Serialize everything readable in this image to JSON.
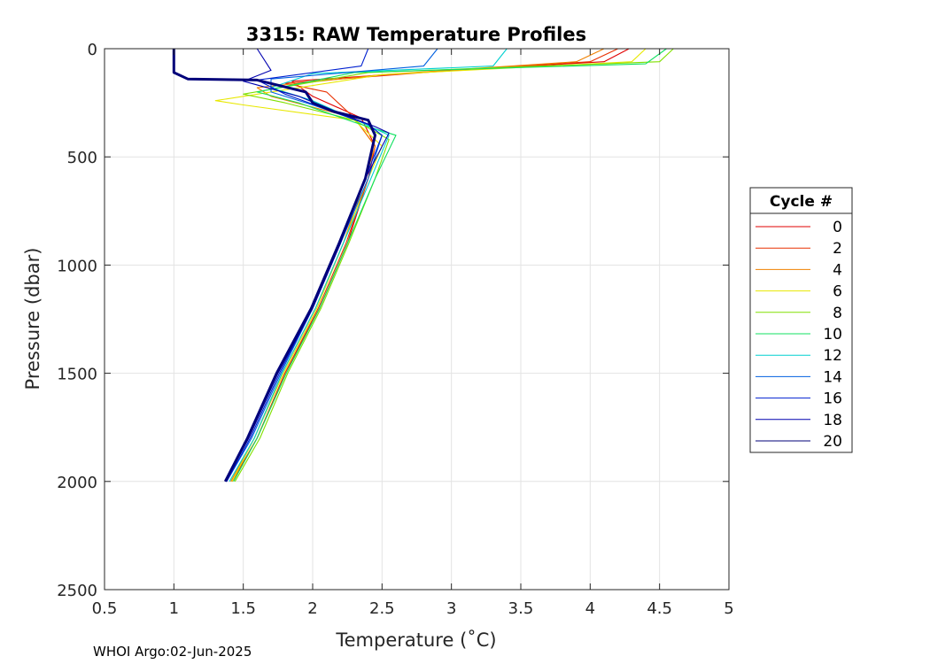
{
  "chart_data": {
    "type": "line",
    "title": "3315: RAW Temperature Profiles",
    "xlabel": "Temperature (˚C)",
    "ylabel": "Pressure (dbar)",
    "xlim": [
      0.5,
      5
    ],
    "ylim": [
      0,
      2500
    ],
    "y_reversed": true,
    "x_ticks": [
      "0.5",
      "1",
      "1.5",
      "2",
      "2.5",
      "3",
      "3.5",
      "4",
      "4.5",
      "5"
    ],
    "y_ticks": [
      "0",
      "500",
      "1000",
      "1500",
      "2000",
      "2500"
    ],
    "grid": true,
    "legend": {
      "title": "Cycle #",
      "position": "right"
    },
    "series": [
      {
        "name": "0",
        "color": "#e00000",
        "surface_temp": 4.28,
        "profile": [
          [
            4.28,
            0
          ],
          [
            4.1,
            60
          ],
          [
            3.0,
            100
          ],
          [
            1.85,
            150
          ],
          [
            2.0,
            220
          ],
          [
            2.35,
            320
          ],
          [
            2.45,
            450
          ],
          [
            2.4,
            600
          ],
          [
            2.25,
            900
          ],
          [
            2.05,
            1200
          ],
          [
            1.8,
            1500
          ],
          [
            1.6,
            1800
          ],
          [
            1.42,
            2000
          ]
        ]
      },
      {
        "name": "2",
        "color": "#e83000",
        "surface_temp": 4.2,
        "profile": [
          [
            4.2,
            0
          ],
          [
            4.0,
            60
          ],
          [
            2.8,
            110
          ],
          [
            1.8,
            160
          ],
          [
            2.1,
            200
          ],
          [
            2.3,
            320
          ],
          [
            2.45,
            450
          ],
          [
            2.4,
            600
          ],
          [
            2.24,
            900
          ],
          [
            2.04,
            1200
          ],
          [
            1.8,
            1500
          ],
          [
            1.6,
            1800
          ],
          [
            1.42,
            2000
          ]
        ]
      },
      {
        "name": "4",
        "color": "#f08000",
        "surface_temp": 4.1,
        "profile": [
          [
            4.1,
            0
          ],
          [
            3.9,
            60
          ],
          [
            2.5,
            120
          ],
          [
            1.6,
            180
          ],
          [
            1.7,
            220
          ],
          [
            2.3,
            320
          ],
          [
            2.45,
            450
          ],
          [
            2.38,
            600
          ],
          [
            2.22,
            900
          ],
          [
            2.02,
            1200
          ],
          [
            1.78,
            1500
          ],
          [
            1.58,
            1800
          ],
          [
            1.41,
            2000
          ]
        ]
      },
      {
        "name": "6",
        "color": "#e8e800",
        "surface_temp": 4.4,
        "profile": [
          [
            4.4,
            0
          ],
          [
            4.3,
            60
          ],
          [
            2.5,
            120
          ],
          [
            1.3,
            240
          ],
          [
            1.5,
            260
          ],
          [
            2.3,
            330
          ],
          [
            2.5,
            450
          ],
          [
            2.4,
            600
          ],
          [
            2.22,
            900
          ],
          [
            2.03,
            1200
          ],
          [
            1.79,
            1500
          ],
          [
            1.58,
            1800
          ],
          [
            1.42,
            2000
          ]
        ]
      },
      {
        "name": "8",
        "color": "#80e000",
        "surface_temp": 4.6,
        "profile": [
          [
            4.6,
            0
          ],
          [
            4.5,
            60
          ],
          [
            2.4,
            110
          ],
          [
            1.5,
            210
          ],
          [
            1.8,
            250
          ],
          [
            2.3,
            330
          ],
          [
            2.55,
            420
          ],
          [
            2.45,
            600
          ],
          [
            2.26,
            900
          ],
          [
            2.06,
            1200
          ],
          [
            1.82,
            1500
          ],
          [
            1.62,
            1800
          ],
          [
            1.44,
            2000
          ]
        ]
      },
      {
        "name": "10",
        "color": "#10e060",
        "surface_temp": 4.55,
        "profile": [
          [
            4.55,
            0
          ],
          [
            4.4,
            70
          ],
          [
            2.3,
            110
          ],
          [
            1.6,
            200
          ],
          [
            1.9,
            250
          ],
          [
            2.3,
            340
          ],
          [
            2.6,
            400
          ],
          [
            2.45,
            600
          ],
          [
            2.25,
            900
          ],
          [
            2.05,
            1200
          ],
          [
            1.81,
            1500
          ],
          [
            1.6,
            1800
          ],
          [
            1.43,
            2000
          ]
        ]
      },
      {
        "name": "12",
        "color": "#00d0d0",
        "surface_temp": 3.4,
        "profile": [
          [
            3.4,
            0
          ],
          [
            3.3,
            80
          ],
          [
            2.0,
            115
          ],
          [
            1.7,
            180
          ],
          [
            2.0,
            240
          ],
          [
            2.35,
            340
          ],
          [
            2.55,
            400
          ],
          [
            2.42,
            600
          ],
          [
            2.22,
            900
          ],
          [
            2.02,
            1200
          ],
          [
            1.78,
            1500
          ],
          [
            1.58,
            1800
          ],
          [
            1.4,
            2000
          ]
        ]
      },
      {
        "name": "14",
        "color": "#0060e0",
        "surface_temp": 2.9,
        "profile": [
          [
            2.9,
            0
          ],
          [
            2.8,
            80
          ],
          [
            1.7,
            140
          ],
          [
            1.7,
            200
          ],
          [
            2.0,
            260
          ],
          [
            2.4,
            350
          ],
          [
            2.5,
            400
          ],
          [
            2.4,
            600
          ],
          [
            2.2,
            900
          ],
          [
            2.0,
            1200
          ],
          [
            1.77,
            1500
          ],
          [
            1.56,
            1800
          ],
          [
            1.38,
            2000
          ]
        ]
      },
      {
        "name": "16",
        "color": "#0020d0",
        "surface_temp": 2.4,
        "profile": [
          [
            2.4,
            0
          ],
          [
            2.35,
            80
          ],
          [
            1.6,
            145
          ],
          [
            1.8,
            210
          ],
          [
            2.1,
            280
          ],
          [
            2.4,
            350
          ],
          [
            2.5,
            400
          ],
          [
            2.38,
            600
          ],
          [
            2.2,
            900
          ],
          [
            2.0,
            1200
          ],
          [
            1.76,
            1500
          ],
          [
            1.55,
            1800
          ],
          [
            1.38,
            2000
          ]
        ]
      },
      {
        "name": "18",
        "color": "#0000b0",
        "surface_temp": 1.6,
        "profile": [
          [
            1.6,
            0
          ],
          [
            1.7,
            100
          ],
          [
            1.5,
            150
          ],
          [
            1.9,
            220
          ],
          [
            2.2,
            300
          ],
          [
            2.45,
            360
          ],
          [
            2.55,
            390
          ],
          [
            2.38,
            600
          ],
          [
            2.2,
            900
          ],
          [
            2.0,
            1200
          ],
          [
            1.75,
            1500
          ],
          [
            1.54,
            1800
          ],
          [
            1.37,
            2000
          ]
        ]
      },
      {
        "name": "20",
        "color": "#00007a",
        "surface_temp": 1.0,
        "profile": [
          [
            1.0,
            0
          ],
          [
            1.0,
            110
          ],
          [
            1.1,
            140
          ],
          [
            1.6,
            145
          ],
          [
            1.95,
            200
          ],
          [
            2.0,
            250
          ],
          [
            2.15,
            290
          ],
          [
            2.4,
            330
          ],
          [
            2.45,
            400
          ],
          [
            2.38,
            600
          ],
          [
            2.19,
            900
          ],
          [
            1.99,
            1200
          ],
          [
            1.74,
            1500
          ],
          [
            1.53,
            1800
          ],
          [
            1.37,
            2000
          ]
        ]
      }
    ]
  },
  "footer": "WHOI Argo:02-Jun-2025"
}
